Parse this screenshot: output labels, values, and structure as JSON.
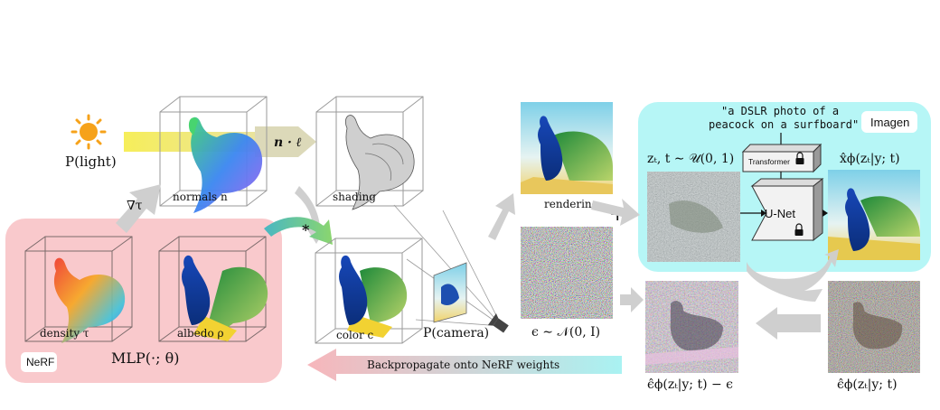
{
  "light_label": "P(light)",
  "grad_label": "∇τ",
  "n_dot_l": "n · ℓ",
  "normals_label": "normals n",
  "shading_label": "shading",
  "star_symbol": "*",
  "density_label": "density τ",
  "albedo_label": "albedo ρ",
  "nerf_tag": "NeRF",
  "mlp_label": "MLP(·; θ)",
  "color_label": "color c",
  "camera_label": "P(camera)",
  "rendering_label": "rendering",
  "plus_symbol": "+",
  "noise_label": "ϵ ∼ 𝒩(0, I)",
  "prompt_line1": "\"a DSLR photo of a",
  "prompt_line2": "peacock on a surfboard\"",
  "imagen_tag": "Imagen",
  "zt_label": "zₜ, t ∼ 𝒰(0, 1)",
  "transformer_label": "Transformer",
  "unet_label": "U-Net",
  "xhat_label": "x̂ϕ(zₜ|y; t)",
  "backprop_label": "Backpropagate onto NeRF weights",
  "eps_hat_minus_label": "ϵ̂ϕ(zₜ|y; t) − ϵ",
  "eps_hat_label": "ϵ̂ϕ(zₜ|y; t)",
  "colors": {
    "nerf_bg": "#f9c9cc",
    "imagen_bg": "#b6f6f6",
    "arrow_gray": "#cfcfcf",
    "light_beam": "#f3ec6a",
    "sun": "#f6a21a"
  }
}
